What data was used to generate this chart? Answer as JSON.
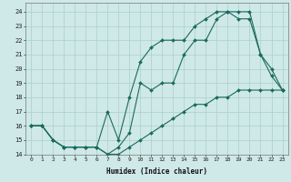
{
  "xlabel": "Humidex (Indice chaleur)",
  "bg_color": "#cfe8e8",
  "line_color": "#1a6b5a",
  "grid_color": "#aacfcf",
  "xlim": [
    -0.5,
    23.5
  ],
  "ylim": [
    14,
    24.6
  ],
  "yticks": [
    14,
    15,
    16,
    17,
    18,
    19,
    20,
    21,
    22,
    23,
    24
  ],
  "xticks": [
    0,
    1,
    2,
    3,
    4,
    5,
    6,
    7,
    8,
    9,
    10,
    11,
    12,
    13,
    14,
    15,
    16,
    17,
    18,
    19,
    20,
    21,
    22,
    23
  ],
  "line1_x": [
    0,
    1,
    2,
    3,
    4,
    5,
    6,
    7,
    8,
    9,
    10,
    11,
    12,
    13,
    14,
    15,
    16,
    17,
    18,
    19,
    20,
    21,
    22,
    23
  ],
  "line1_y": [
    16,
    16,
    15,
    14.5,
    14.5,
    14.5,
    14.5,
    14,
    14.5,
    15.5,
    19,
    18.5,
    19,
    19,
    21,
    22,
    22,
    23.5,
    24,
    24,
    24,
    21,
    19.5,
    18.5
  ],
  "line2_x": [
    0,
    1,
    2,
    3,
    4,
    5,
    6,
    7,
    8,
    9,
    10,
    11,
    12,
    13,
    14,
    15,
    16,
    17,
    18,
    19,
    20,
    21,
    22,
    23
  ],
  "line2_y": [
    16,
    16,
    15,
    14.5,
    14.5,
    14.5,
    14.5,
    17,
    15,
    18,
    20.5,
    21.5,
    22,
    22,
    22,
    23,
    23.5,
    24,
    24,
    23.5,
    23.5,
    21,
    20,
    18.5
  ],
  "line3_x": [
    0,
    1,
    2,
    3,
    4,
    5,
    6,
    7,
    8,
    9,
    10,
    11,
    12,
    13,
    14,
    15,
    16,
    17,
    18,
    19,
    20,
    21,
    22,
    23
  ],
  "line3_y": [
    16,
    16,
    15,
    14.5,
    14.5,
    14.5,
    14.5,
    14,
    14,
    14.5,
    15,
    15.5,
    16,
    16.5,
    17,
    17.5,
    17.5,
    18,
    18,
    18.5,
    18.5,
    18.5,
    18.5,
    18.5
  ]
}
